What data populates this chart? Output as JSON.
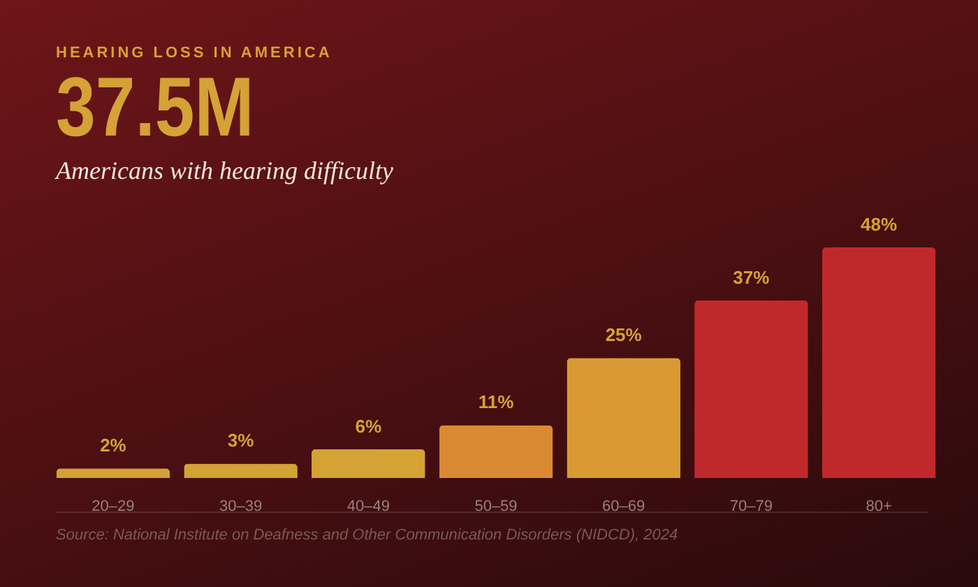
{
  "chart_data": {
    "type": "bar",
    "title": "HEARING LOSS IN AMERICA",
    "subtitle": "Americans with hearing difficulty",
    "annotations": [
      "37.5M",
      "Source: National Institute on Deafness and Other Communication Disorders (NIDCD), 2024"
    ],
    "categories": [
      "20–29",
      "30–39",
      "40–49",
      "50–59",
      "60–69",
      "70–79",
      "80+"
    ],
    "values": [
      2,
      3,
      6,
      11,
      25,
      37,
      48
    ],
    "value_labels": [
      "2%",
      "3%",
      "6%",
      "11%",
      "25%",
      "37%",
      "48%"
    ],
    "colors": [
      "#d4a235",
      "#d4a235",
      "#d4a235",
      "#d98a32",
      "#d99a34",
      "#c0292b",
      "#c0292b"
    ],
    "grid": false
  }
}
